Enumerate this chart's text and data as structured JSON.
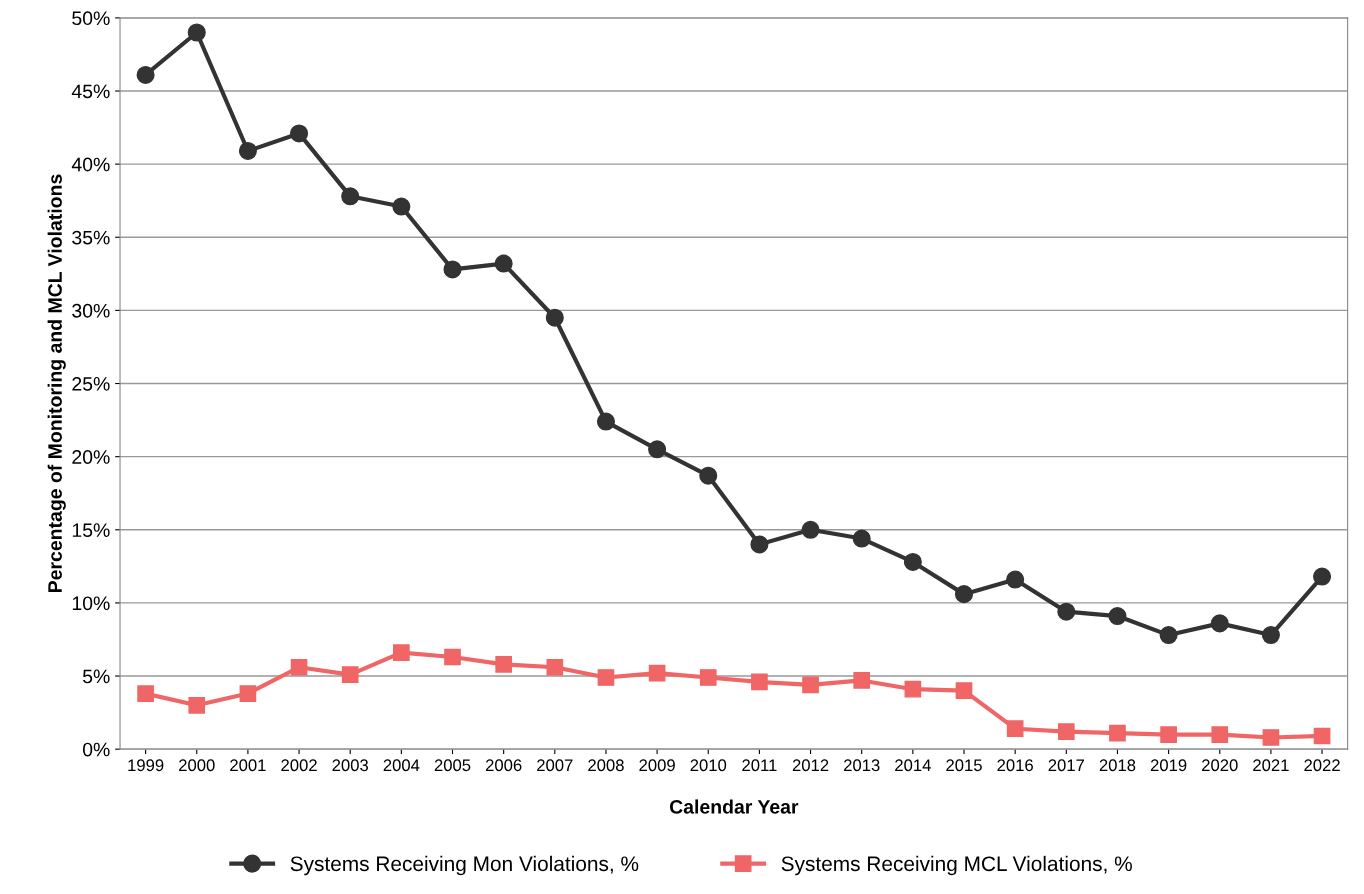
{
  "chart_data": {
    "type": "line",
    "xlabel": "Calendar Year",
    "ylabel": "Percentage of Monitoring and MCL Violations",
    "categories": [
      "1999",
      "2000",
      "2001",
      "2002",
      "2003",
      "2004",
      "2005",
      "2006",
      "2007",
      "2008",
      "2009",
      "2010",
      "2011",
      "2012",
      "2013",
      "2014",
      "2015",
      "2016",
      "2017",
      "2018",
      "2019",
      "2020",
      "2021",
      "2022"
    ],
    "series": [
      {
        "name": "Systems Receiving Mon Violations, %",
        "color": "#333333",
        "marker": "circle",
        "values": [
          46.1,
          49.0,
          40.9,
          42.1,
          37.8,
          37.1,
          32.8,
          33.2,
          29.5,
          22.4,
          20.5,
          18.7,
          14.0,
          15.0,
          14.4,
          12.8,
          10.6,
          11.6,
          9.4,
          9.1,
          7.8,
          8.6,
          7.8,
          11.8
        ]
      },
      {
        "name": "Systems Receiving MCL Violations, %",
        "color": "#f06565",
        "marker": "square",
        "values": [
          3.8,
          3.0,
          3.8,
          5.6,
          5.1,
          6.6,
          6.3,
          5.8,
          5.6,
          4.9,
          5.2,
          4.9,
          4.6,
          4.4,
          4.7,
          4.1,
          4.0,
          1.4,
          1.2,
          1.1,
          1.0,
          1.0,
          0.8,
          0.9
        ]
      }
    ],
    "ylim": [
      0,
      50
    ],
    "yticks": [
      {
        "value": 0,
        "label": "0%"
      },
      {
        "value": 5,
        "label": "5%"
      },
      {
        "value": 10,
        "label": "10%"
      },
      {
        "value": 15,
        "label": "15%"
      },
      {
        "value": 20,
        "label": "20%"
      },
      {
        "value": 25,
        "label": "25%"
      },
      {
        "value": 30,
        "label": "30%"
      },
      {
        "value": 35,
        "label": "35%"
      },
      {
        "value": 40,
        "label": "40%"
      },
      {
        "value": 45,
        "label": "45%"
      },
      {
        "value": 50,
        "label": "50%"
      }
    ],
    "grid": "y",
    "legend": "bottom",
    "line_style": "solid"
  }
}
